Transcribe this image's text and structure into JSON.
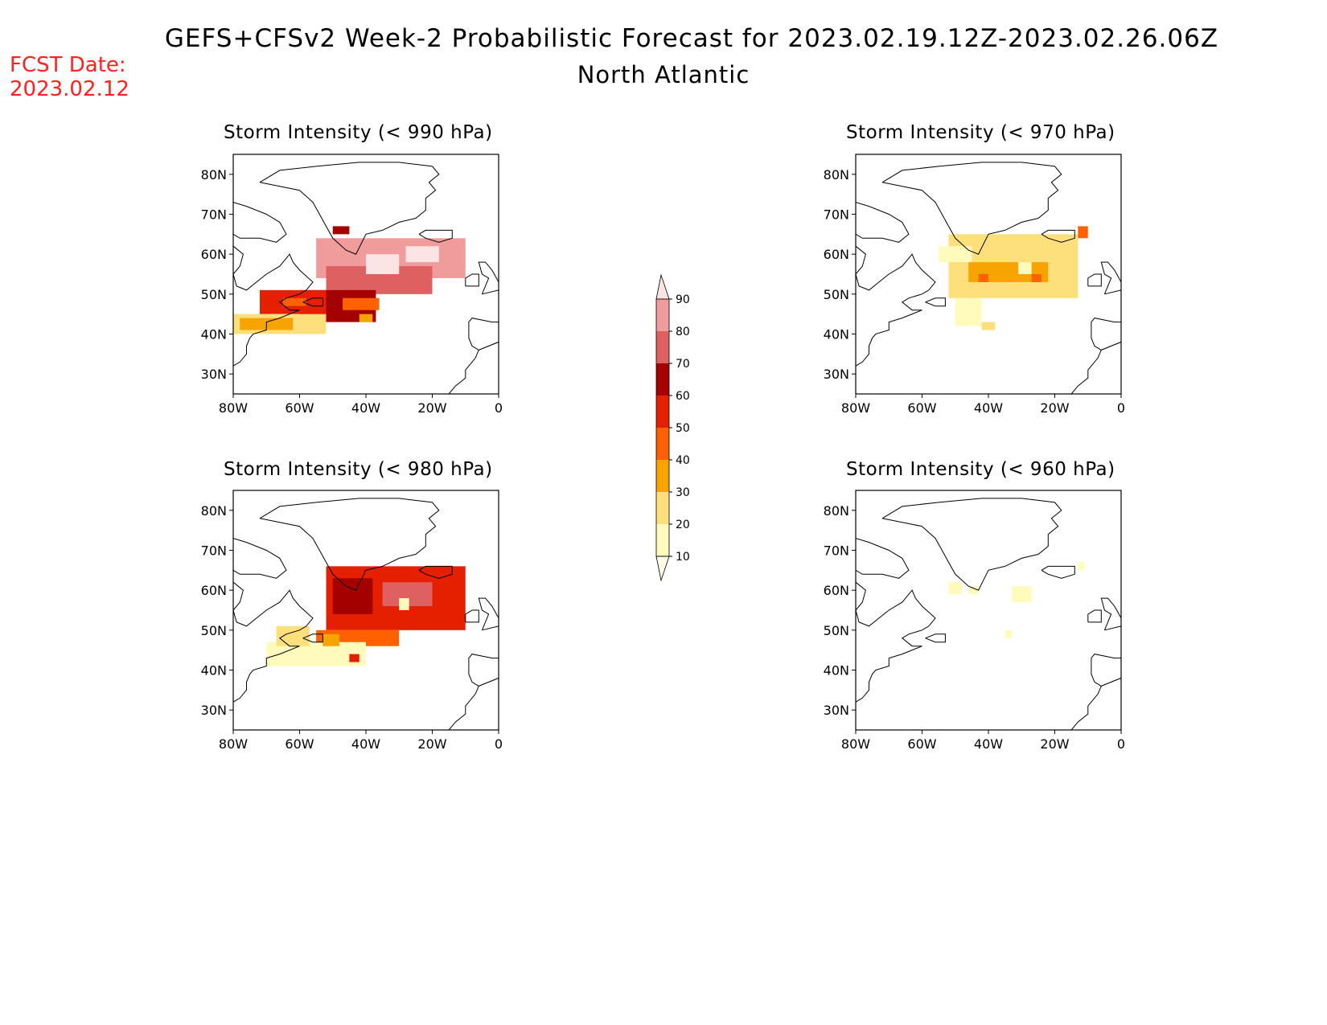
{
  "header": {
    "title": "GEFS+CFSv2 Week-2 Probabilistic Forecast for 2023.02.19.12Z-2023.02.26.06Z",
    "region": "North Atlantic",
    "fcst_label": "FCST Date:",
    "fcst_date": "2023.02.12"
  },
  "axes": {
    "lat_ticks": [
      "80N",
      "70N",
      "60N",
      "50N",
      "40N",
      "30N"
    ],
    "lon_ticks": [
      "80W",
      "60W",
      "40W",
      "20W",
      "0"
    ]
  },
  "panels": [
    {
      "id": "p990",
      "title": "Storm Intensity (< 990 hPa)"
    },
    {
      "id": "p970",
      "title": "Storm Intensity (< 970 hPa)"
    },
    {
      "id": "p980",
      "title": "Storm Intensity (< 980 hPa)"
    },
    {
      "id": "p960",
      "title": "Storm Intensity (< 960 hPa)"
    }
  ],
  "colorbar": {
    "levels": [
      "10",
      "20",
      "30",
      "40",
      "50",
      "60",
      "70",
      "80",
      "90"
    ],
    "colors": [
      "#fffbbd",
      "#fde07c",
      "#f7a300",
      "#fe6200",
      "#e52000",
      "#a40000",
      "#df6060",
      "#f19c9c",
      "#fde4e4"
    ]
  }
}
